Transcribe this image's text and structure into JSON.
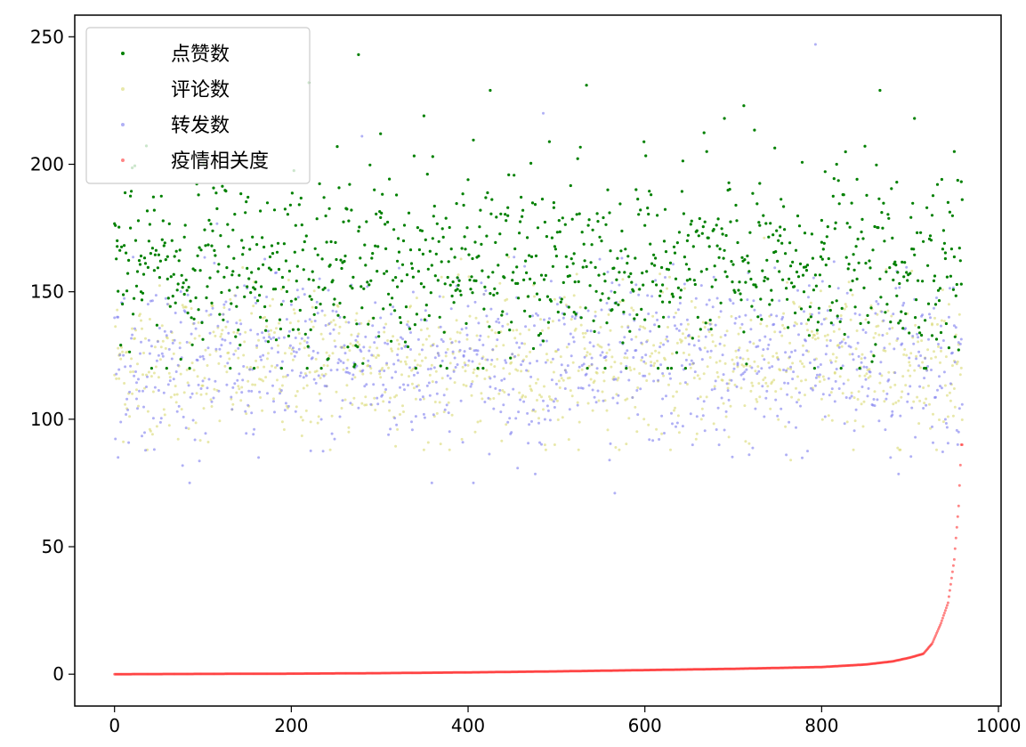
{
  "chart_data": {
    "type": "scatter",
    "title": "",
    "xlabel": "",
    "ylabel": "",
    "xlim": [
      -45,
      1003
    ],
    "ylim": [
      -12.5,
      258.5
    ],
    "x_ticks": [
      0,
      200,
      400,
      600,
      800,
      1000
    ],
    "y_ticks": [
      0,
      50,
      100,
      150,
      200,
      250
    ],
    "grid": false,
    "legend": {
      "placement": "top-left"
    },
    "point_count": 960,
    "series": [
      {
        "name": "点赞数",
        "color": "#008000",
        "opacity": 1.0,
        "y_summary": {
          "min": 116,
          "max": 246,
          "center": 160,
          "spread": 18
        },
        "samples": [
          [
            3,
            170
          ],
          [
            18,
            175
          ],
          [
            30,
            150
          ],
          [
            45,
            182
          ],
          [
            60,
            155
          ],
          [
            79,
            149
          ],
          [
            95,
            143
          ],
          [
            110,
            168
          ],
          [
            134,
            158
          ],
          [
            150,
            152
          ],
          [
            165,
            140
          ],
          [
            189,
            145
          ],
          [
            205,
            176
          ],
          [
            220,
            232
          ],
          [
            243,
            160
          ],
          [
            260,
            140
          ],
          [
            276,
            243
          ],
          [
            301,
            212
          ],
          [
            320,
            162
          ],
          [
            350,
            219
          ],
          [
            360,
            203
          ],
          [
            388,
            151
          ],
          [
            405,
            163
          ],
          [
            425,
            229
          ],
          [
            445,
            183
          ],
          [
            470,
            155
          ],
          [
            497,
            183
          ],
          [
            520,
            142
          ],
          [
            534,
            231
          ],
          [
            555,
            120
          ],
          [
            575,
            130
          ],
          [
            600,
            176
          ],
          [
            620,
            146
          ],
          [
            648,
            170
          ],
          [
            670,
            205
          ],
          [
            690,
            218
          ],
          [
            712,
            223
          ],
          [
            730,
            176
          ],
          [
            753,
            172
          ],
          [
            780,
            150
          ],
          [
            800,
            178
          ],
          [
            817,
            200
          ],
          [
            840,
            155
          ],
          [
            866,
            229
          ],
          [
            885,
            193
          ],
          [
            905,
            218
          ],
          [
            925,
            180
          ],
          [
            940,
            163
          ],
          [
            950,
            205
          ],
          [
            958,
            153
          ]
        ]
      },
      {
        "name": "评论数",
        "color": "#d8d872",
        "opacity": 0.6,
        "y_summary": {
          "min": 84,
          "max": 188,
          "center": 122,
          "spread": 15
        },
        "samples": [
          [
            5,
            125
          ],
          [
            20,
            110
          ],
          [
            40,
            96
          ],
          [
            62,
            118
          ],
          [
            85,
            130
          ],
          [
            110,
            105
          ],
          [
            140,
            124
          ],
          [
            168,
            115
          ],
          [
            190,
            99
          ],
          [
            215,
            128
          ],
          [
            240,
            113
          ],
          [
            265,
            95
          ],
          [
            290,
            120
          ],
          [
            320,
            131
          ],
          [
            350,
            108
          ],
          [
            380,
            122
          ],
          [
            410,
            117
          ],
          [
            440,
            129
          ],
          [
            470,
            113
          ],
          [
            498,
            90
          ],
          [
            525,
            119
          ],
          [
            557,
            126
          ],
          [
            580,
            108
          ],
          [
            610,
            121
          ],
          [
            640,
            114
          ],
          [
            668,
            128
          ],
          [
            695,
            93
          ],
          [
            720,
            111
          ],
          [
            750,
            124
          ],
          [
            765,
            84
          ],
          [
            790,
            132
          ],
          [
            815,
            118
          ],
          [
            845,
            106
          ],
          [
            870,
            127
          ],
          [
            900,
            117
          ],
          [
            925,
            137
          ],
          [
            950,
            112
          ]
        ]
      },
      {
        "name": "转发数",
        "color": "#7b7bee",
        "opacity": 0.6,
        "y_summary": {
          "min": 71,
          "max": 247,
          "center": 123,
          "spread": 17
        },
        "samples": [
          [
            4,
            140
          ],
          [
            25,
            108
          ],
          [
            50,
            125
          ],
          [
            75,
            138
          ],
          [
            100,
            115
          ],
          [
            128,
            122
          ],
          [
            155,
            111
          ],
          [
            180,
            132
          ],
          [
            205,
            103
          ],
          [
            230,
            126
          ],
          [
            255,
            101
          ],
          [
            280,
            211
          ],
          [
            305,
            119
          ],
          [
            335,
            134
          ],
          [
            365,
            110
          ],
          [
            395,
            125
          ],
          [
            425,
            116
          ],
          [
            455,
            130
          ],
          [
            485,
            220
          ],
          [
            510,
            112
          ],
          [
            540,
            124
          ],
          [
            560,
            84
          ],
          [
            566,
            71
          ],
          [
            590,
            127
          ],
          [
            620,
            108
          ],
          [
            650,
            133
          ],
          [
            680,
            115
          ],
          [
            705,
            122
          ],
          [
            735,
            101
          ],
          [
            760,
            86
          ],
          [
            793,
            247
          ],
          [
            820,
            112
          ],
          [
            850,
            134
          ],
          [
            880,
            103
          ],
          [
            910,
            121
          ],
          [
            935,
            128
          ],
          [
            955,
            95
          ]
        ]
      },
      {
        "name": "疫情相关度",
        "color": "#ff3333",
        "opacity": 0.6,
        "curve_x": [
          0,
          100,
          200,
          300,
          400,
          500,
          600,
          700,
          800,
          850,
          880,
          900,
          915,
          925,
          935,
          943,
          950,
          955,
          958
        ],
        "curve_y": [
          0,
          0.1,
          0.2,
          0.4,
          0.7,
          1.1,
          1.6,
          2.1,
          2.8,
          3.8,
          5,
          6.5,
          8,
          12,
          20,
          28,
          45,
          66,
          90
        ]
      }
    ]
  }
}
